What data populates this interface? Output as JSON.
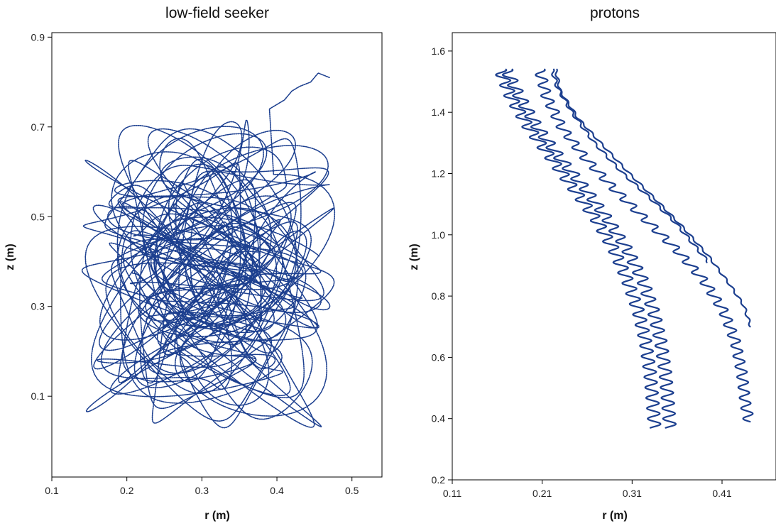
{
  "colors": {
    "trajectory": "#1c3f8f",
    "axis": "#000000",
    "background": "#ffffff"
  },
  "chart_data": [
    {
      "type": "line",
      "title": "low-field seeker",
      "xlabel": "r (m)",
      "ylabel": "z (m)",
      "xlim": [
        0.1,
        0.54
      ],
      "ylim": [
        -0.08,
        0.91
      ],
      "xticks": [
        0.1,
        0.2,
        0.3,
        0.4,
        0.5
      ],
      "xtick_labels": [
        "0.1",
        "0.2",
        "0.3",
        "0.4",
        "0.5"
      ],
      "yticks": [
        0.1,
        0.3,
        0.5,
        0.7,
        0.9
      ],
      "ytick_labels": [
        "0.1",
        "0.3",
        "0.5",
        "0.7",
        "0.9"
      ],
      "grid": false,
      "trajectory_extent": {
        "r_range": [
          0.14,
          0.48
        ],
        "z_range": [
          0.02,
          0.82
        ],
        "start_point": [
          0.47,
          0.81
        ]
      }
    },
    {
      "type": "line",
      "title": "protons",
      "xlabel": "r (m)",
      "ylabel": "z (m)",
      "xlim": [
        0.11,
        0.47
      ],
      "ylim": [
        0.2,
        1.66
      ],
      "xticks": [
        0.11,
        0.21,
        0.31,
        0.41
      ],
      "xtick_labels": [
        "0.11",
        "0.21",
        "0.31",
        "0.41"
      ],
      "yticks": [
        0.2,
        0.4,
        0.6,
        0.8,
        1.0,
        1.2,
        1.4,
        1.6
      ],
      "ytick_labels": [
        "0.2",
        "0.4",
        "0.6",
        "0.8",
        "1.0",
        "1.2",
        "1.4",
        "1.6"
      ],
      "grid": false,
      "series": [
        {
          "points": [
            [
              0.163,
              1.54
            ],
            [
              0.175,
              1.45
            ],
            [
              0.195,
              1.35
            ],
            [
              0.22,
              1.25
            ],
            [
              0.245,
              1.15
            ],
            [
              0.27,
              1.05
            ],
            [
              0.29,
              0.95
            ],
            [
              0.305,
              0.85
            ],
            [
              0.317,
              0.75
            ],
            [
              0.325,
              0.65
            ],
            [
              0.33,
              0.55
            ],
            [
              0.333,
              0.45
            ],
            [
              0.335,
              0.37
            ]
          ],
          "wiggle_amplitude": 0.007
        },
        {
          "points": [
            [
              0.17,
              1.54
            ],
            [
              0.185,
              1.45
            ],
            [
              0.205,
              1.35
            ],
            [
              0.23,
              1.25
            ],
            [
              0.258,
              1.15
            ],
            [
              0.283,
              1.05
            ],
            [
              0.305,
              0.95
            ],
            [
              0.322,
              0.85
            ],
            [
              0.334,
              0.75
            ],
            [
              0.342,
              0.65
            ],
            [
              0.347,
              0.55
            ],
            [
              0.35,
              0.45
            ],
            [
              0.352,
              0.37
            ]
          ],
          "wiggle_amplitude": 0.007
        },
        {
          "points": [
            [
              0.207,
              1.54
            ],
            [
              0.215,
              1.45
            ],
            [
              0.232,
              1.35
            ],
            [
              0.258,
              1.25
            ],
            [
              0.29,
              1.15
            ],
            [
              0.325,
              1.05
            ],
            [
              0.36,
              0.95
            ],
            [
              0.39,
              0.85
            ],
            [
              0.412,
              0.75
            ],
            [
              0.425,
              0.65
            ],
            [
              0.432,
              0.55
            ],
            [
              0.436,
              0.45
            ],
            [
              0.44,
              0.39
            ]
          ],
          "wiggle_amplitude": 0.006
        },
        {
          "points": [
            [
              0.221,
              1.54
            ],
            [
              0.227,
              1.48
            ],
            [
              0.243,
              1.4
            ],
            [
              0.268,
              1.3
            ],
            [
              0.3,
              1.2
            ],
            [
              0.33,
              1.12
            ],
            [
              0.358,
              1.04
            ],
            [
              0.378,
              0.97
            ],
            [
              0.395,
              0.91
            ]
          ],
          "wiggle_amplitude": 0.002
        },
        {
          "points": [
            [
              0.225,
              1.54
            ],
            [
              0.23,
              1.47
            ],
            [
              0.25,
              1.38
            ],
            [
              0.275,
              1.3
            ],
            [
              0.307,
              1.2
            ],
            [
              0.338,
              1.11
            ],
            [
              0.368,
              1.02
            ],
            [
              0.395,
              0.93
            ],
            [
              0.418,
              0.84
            ],
            [
              0.434,
              0.77
            ],
            [
              0.442,
              0.7
            ]
          ],
          "wiggle_amplitude": 0.0015
        }
      ]
    }
  ]
}
